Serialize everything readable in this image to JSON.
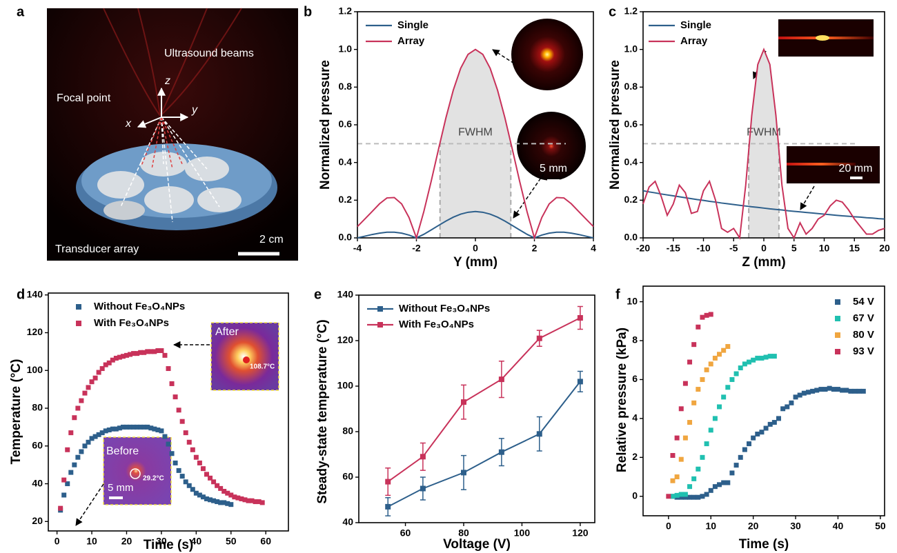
{
  "chart_data": [
    {
      "type": "image",
      "panel": "a",
      "labels": [
        "Ultrasound beams",
        "Focal point",
        "z",
        "y",
        "x",
        "2 cm",
        "Transducer array"
      ]
    },
    {
      "type": "line",
      "panel": "b",
      "xlabel": "Y (mm)",
      "ylabel": "Normalized pressure",
      "x": [
        -4,
        -3.75,
        -3.5,
        -3.25,
        -3,
        -2.75,
        -2.5,
        -2.25,
        -2,
        -1.75,
        -1.5,
        -1.25,
        -1,
        -0.75,
        -0.5,
        -0.25,
        0,
        0.25,
        0.5,
        0.75,
        1,
        1.25,
        1.5,
        1.75,
        2,
        2.25,
        2.5,
        2.75,
        3,
        3.25,
        3.5,
        3.75,
        4
      ],
      "series": [
        {
          "name": "Single",
          "color": "#2d5f8b",
          "values": [
            0,
            0.009,
            0.018,
            0.025,
            0.03,
            0.03,
            0.025,
            0.015,
            0,
            0.019,
            0.042,
            0.066,
            0.089,
            0.11,
            0.126,
            0.136,
            0.14,
            0.136,
            0.126,
            0.11,
            0.089,
            0.066,
            0.042,
            0.019,
            0,
            0.015,
            0.025,
            0.03,
            0.03,
            0.025,
            0.018,
            0.009,
            0
          ]
        },
        {
          "name": "Array",
          "color": "#c8325a",
          "values": [
            0.06,
            0.1,
            0.14,
            0.181,
            0.212,
            0.214,
            0.18,
            0.108,
            0,
            0.139,
            0.3,
            0.471,
            0.637,
            0.784,
            0.9,
            0.974,
            1,
            0.974,
            0.9,
            0.784,
            0.637,
            0.471,
            0.3,
            0.139,
            0,
            0.108,
            0.18,
            0.214,
            0.212,
            0.181,
            0.14,
            0.1,
            0.06
          ]
        }
      ],
      "xlim": [
        -4,
        4
      ],
      "xticks": [
        -4,
        -2,
        0,
        2,
        4
      ],
      "ylim": [
        0,
        1.2
      ],
      "yticks": [
        {
          "value": 0,
          "label": "0.0"
        },
        0.2,
        0.4,
        0.6,
        0.8,
        {
          "value": 1,
          "label": "1.0"
        },
        1.2
      ],
      "fwhm": {
        "label": "FWHM",
        "y": 0.5,
        "x": [
          -1.2,
          1.2
        ]
      },
      "inset_labels": [
        "5 mm"
      ],
      "legend": "upper left"
    },
    {
      "type": "line",
      "panel": "c",
      "xlabel": "Z (mm)",
      "ylabel": "Normalized pressure",
      "x": [
        -20,
        -19,
        -18,
        -17,
        -16,
        -15,
        -14,
        -13,
        -12,
        -11,
        -10,
        -9,
        -8,
        -7,
        -6,
        -5,
        -4,
        -3,
        -2,
        -1,
        0,
        1,
        2,
        3,
        4,
        5,
        6,
        7,
        8,
        9,
        10,
        11,
        12,
        13,
        14,
        15,
        16,
        17,
        18,
        19,
        20
      ],
      "series": [
        {
          "name": "Single",
          "color": "#2d5f8b",
          "values": [
            0.25,
            0.244,
            0.239,
            0.233,
            0.228,
            0.223,
            0.218,
            0.213,
            0.208,
            0.203,
            0.199,
            0.194,
            0.19,
            0.185,
            0.181,
            0.177,
            0.173,
            0.169,
            0.165,
            0.162,
            0.158,
            0.154,
            0.151,
            0.148,
            0.144,
            0.141,
            0.138,
            0.135,
            0.132,
            0.129,
            0.126,
            0.123,
            0.12,
            0.117,
            0.115,
            0.112,
            0.11,
            0.107,
            0.105,
            0.102,
            0.1
          ]
        },
        {
          "name": "Array",
          "color": "#c8325a",
          "values": [
            0.18,
            0.27,
            0.3,
            0.22,
            0.12,
            0.18,
            0.28,
            0.24,
            0.13,
            0.14,
            0.25,
            0.3,
            0.2,
            0.05,
            0.03,
            0.05,
            0,
            0.28,
            0.65,
            0.92,
            1,
            0.92,
            0.65,
            0.28,
            0.05,
            0,
            0.08,
            0.02,
            0.05,
            0.1,
            0.12,
            0.17,
            0.2,
            0.19,
            0.15,
            0.1,
            0.06,
            0.02,
            0.02,
            0.04,
            0.05
          ]
        }
      ],
      "xlim": [
        -20,
        20
      ],
      "xticks": [
        -20,
        -15,
        -10,
        -5,
        0,
        5,
        10,
        15,
        20
      ],
      "ylim": [
        0,
        1.2
      ],
      "yticks": [
        {
          "value": 0,
          "label": "0.0"
        },
        0.2,
        0.4,
        0.6,
        0.8,
        {
          "value": 1,
          "label": "1.0"
        },
        1.2
      ],
      "fwhm": {
        "label": "FWHM",
        "y": 0.5,
        "x": [
          -2.5,
          2.5
        ]
      },
      "inset_labels": [
        "20 mm"
      ],
      "legend": "upper left"
    },
    {
      "type": "scatter",
      "panel": "d",
      "xlabel": "Time (s)",
      "ylabel": "Temperature (°C)",
      "series": [
        {
          "name": "Without Fe₃O₄NPs",
          "color": "#2d5f8b",
          "x": [
            1,
            2,
            3,
            4,
            5,
            6,
            7,
            8,
            9,
            10,
            11,
            12,
            13,
            14,
            15,
            16,
            17,
            18,
            19,
            20,
            21,
            22,
            23,
            24,
            25,
            26,
            27,
            28,
            29,
            30,
            31,
            32,
            33,
            34,
            35,
            36,
            37,
            38,
            39,
            40,
            41,
            42,
            43,
            44,
            45,
            46,
            47,
            48,
            49,
            50
          ],
          "values": [
            26,
            34,
            40,
            46,
            50,
            54,
            57,
            60,
            62,
            64,
            65,
            66,
            67,
            68,
            68.5,
            69,
            69,
            69.5,
            70,
            70,
            70,
            70,
            70,
            70,
            70,
            70,
            69.5,
            69,
            68.5,
            68,
            65,
            61,
            56,
            51,
            47,
            44,
            41,
            39,
            37,
            35,
            34,
            33,
            32,
            31.5,
            31,
            30.5,
            30,
            30,
            29.5,
            29
          ]
        },
        {
          "name": "With Fe₃O₄NPs",
          "color": "#c8325a",
          "x": [
            1,
            2,
            3,
            4,
            5,
            6,
            7,
            8,
            9,
            10,
            11,
            12,
            13,
            14,
            15,
            16,
            17,
            18,
            19,
            20,
            21,
            22,
            23,
            24,
            25,
            26,
            27,
            28,
            29,
            30,
            31,
            32,
            33,
            34,
            35,
            36,
            37,
            38,
            39,
            40,
            41,
            42,
            43,
            44,
            45,
            46,
            47,
            48,
            49,
            50,
            51,
            52,
            53,
            54,
            55,
            56,
            57,
            58,
            59
          ],
          "values": [
            27,
            42,
            58,
            67,
            75,
            80,
            84,
            88,
            91,
            94,
            96,
            99,
            101,
            103,
            104,
            105.5,
            106.5,
            107,
            107.5,
            108,
            108.5,
            109,
            109,
            109.5,
            109.5,
            110,
            110,
            110,
            110.5,
            110.5,
            108,
            101,
            93,
            86,
            79,
            73,
            67,
            62,
            58,
            54,
            51,
            48,
            45,
            43,
            41,
            39,
            37.5,
            36,
            35,
            34,
            33,
            32.5,
            32,
            31.5,
            31,
            31,
            30.5,
            30.5,
            30
          ]
        }
      ],
      "xlim": [
        -2.5,
        66.5
      ],
      "xticks": [
        0,
        10,
        20,
        30,
        40,
        50,
        60
      ],
      "ylim": [
        15,
        141
      ],
      "yticks": [
        20,
        40,
        60,
        80,
        100,
        120,
        140
      ],
      "insets": [
        "After",
        "108.7°C",
        "Before",
        "29.2°C",
        "5 mm"
      ],
      "legend": "upper left"
    },
    {
      "type": "line",
      "panel": "e",
      "markers": true,
      "xlabel": "Voltage (V)",
      "ylabel": "Steady-state temperature (°C)",
      "x": [
        54,
        66,
        80,
        93,
        106,
        120
      ],
      "series": [
        {
          "name": "Without Fe₃O₄NPs",
          "color": "#2d5f8b",
          "values": [
            47,
            55,
            62,
            71,
            79,
            102
          ],
          "errors": [
            4,
            5,
            7.5,
            6,
            7.5,
            4.5
          ]
        },
        {
          "name": "With Fe₃O₄NPs",
          "color": "#c8325a",
          "values": [
            58,
            69,
            93,
            103,
            121,
            130
          ],
          "errors": [
            6,
            6,
            7.5,
            8,
            3.5,
            5
          ]
        }
      ],
      "xlim": [
        44,
        125
      ],
      "xticks": [
        60,
        80,
        100,
        120
      ],
      "ylim": [
        40,
        140
      ],
      "yticks": [
        40,
        60,
        80,
        100,
        120,
        140
      ],
      "legend": "upper left"
    },
    {
      "type": "scatter",
      "panel": "f",
      "xlabel": "Time (s)",
      "ylabel": "Relative pressure (kPa)",
      "series": [
        {
          "name": "54 V",
          "color": "#2d5f8b",
          "x": [
            1,
            2,
            3,
            4,
            5,
            6,
            7,
            8,
            9,
            10,
            11,
            12,
            13,
            14,
            15,
            16,
            17,
            18,
            19,
            20,
            21,
            22,
            23,
            24,
            25,
            26,
            27,
            28,
            29,
            30,
            31,
            32,
            33,
            34,
            35,
            36,
            37,
            38,
            39,
            40,
            41,
            42,
            43,
            44,
            45,
            46
          ],
          "values": [
            0,
            -0.05,
            -0.05,
            -0.05,
            -0.05,
            -0.05,
            -0.05,
            0,
            0.1,
            0.3,
            0.5,
            0.6,
            0.7,
            0.7,
            1.2,
            1.6,
            2,
            2.4,
            2.7,
            3,
            3.2,
            3.3,
            3.5,
            3.7,
            3.8,
            4,
            4.5,
            4.6,
            4.8,
            5.1,
            5.2,
            5.3,
            5.35,
            5.4,
            5.45,
            5.5,
            5.5,
            5.55,
            5.5,
            5.5,
            5.45,
            5.45,
            5.4,
            5.4,
            5.4,
            5.4
          ]
        },
        {
          "name": "67 V",
          "color": "#20c0b0",
          "x": [
            1,
            2,
            3,
            4,
            5,
            6,
            7,
            8,
            9,
            10,
            11,
            12,
            13,
            14,
            15,
            16,
            17,
            18,
            19,
            20,
            21,
            22,
            23,
            24,
            25
          ],
          "values": [
            0,
            0.05,
            0.1,
            0.1,
            0.5,
            0.9,
            1.4,
            2,
            2.7,
            3.4,
            4,
            4.6,
            5.1,
            5.6,
            6,
            6.3,
            6.6,
            6.8,
            6.9,
            7,
            7.1,
            7.1,
            7.15,
            7.2,
            7.2
          ]
        },
        {
          "name": "80 V",
          "color": "#f0a640",
          "x": [
            1,
            2,
            3,
            4,
            5,
            6,
            7,
            8,
            9,
            10,
            11,
            12,
            13,
            14
          ],
          "values": [
            0.8,
            1,
            1.9,
            3,
            3.8,
            4.8,
            5.5,
            6,
            6.5,
            6.8,
            7.1,
            7.3,
            7.5,
            7.7
          ]
        },
        {
          "name": "93 V",
          "color": "#c8325a",
          "x": [
            0,
            1,
            2,
            3,
            4,
            5,
            6,
            7,
            8,
            9,
            10
          ],
          "values": [
            0,
            2.1,
            3,
            4.5,
            5.8,
            6.9,
            7.8,
            8.7,
            9.2,
            9.3,
            9.35
          ]
        }
      ],
      "xlim": [
        -6,
        51
      ],
      "xticks": [
        0,
        10,
        20,
        30,
        40,
        50
      ],
      "ylim": [
        -1,
        10.8
      ],
      "yticks": [
        0,
        2,
        4,
        6,
        8,
        10
      ],
      "legend": "upper right"
    }
  ]
}
